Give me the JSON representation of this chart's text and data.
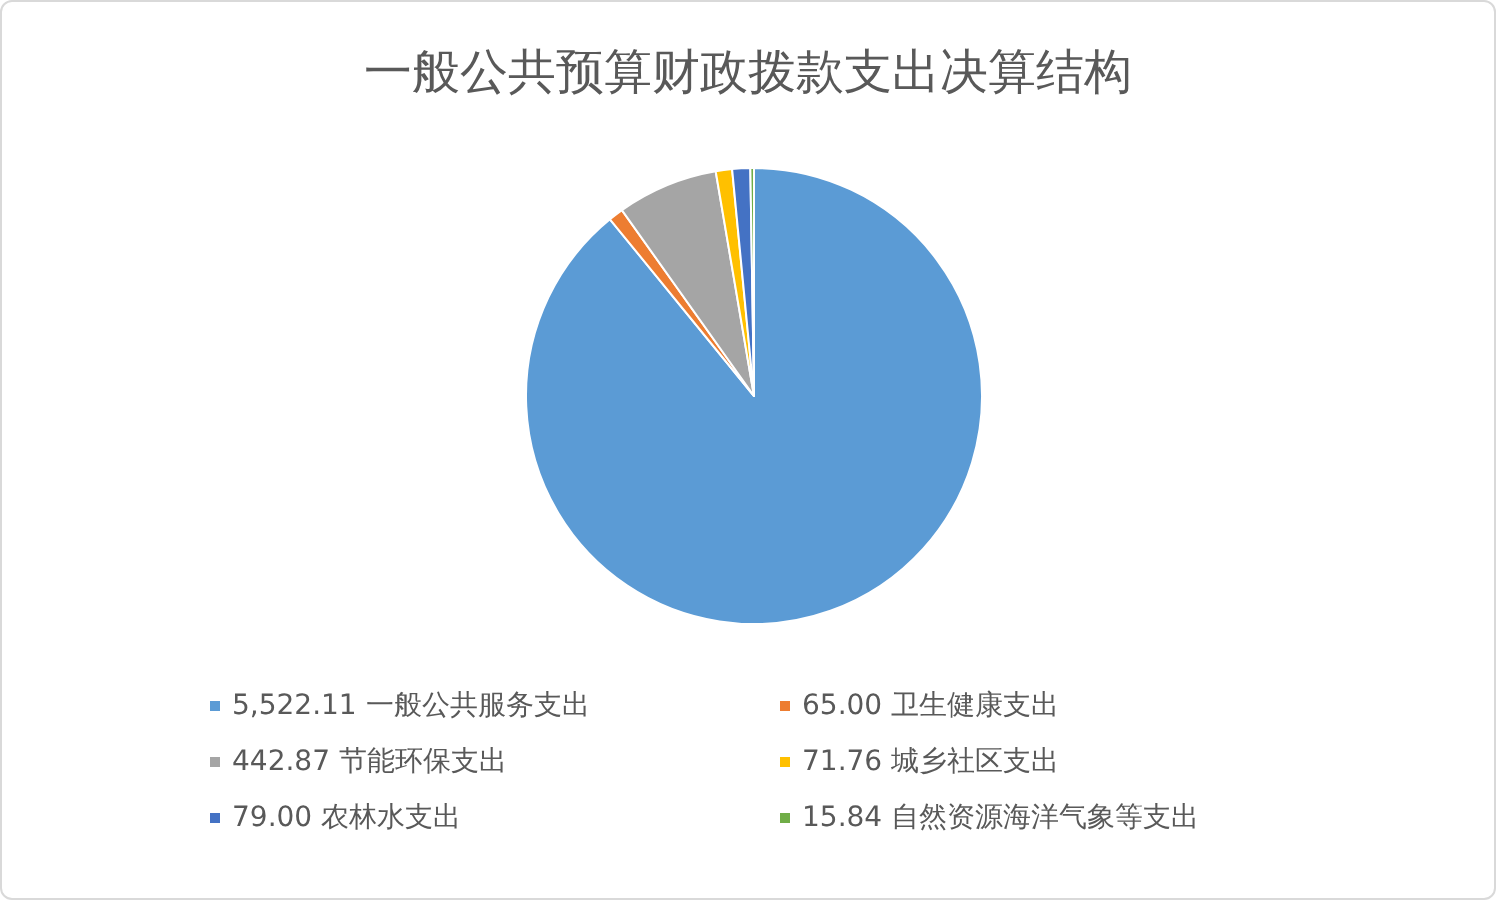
{
  "chart_data": {
    "type": "pie",
    "title": "一般公共预算财政拨款支出决算结构",
    "categories": [
      "一般公共服务支出",
      "卫生健康支出",
      "节能环保支出",
      "城乡社区支出",
      "农林水支出",
      "自然资源海洋气象等支出"
    ],
    "values": [
      5522.11,
      65.0,
      442.87,
      71.76,
      79.0,
      15.84
    ],
    "value_labels": [
      "5,522.11",
      "65.00",
      "442.87",
      "71.76",
      "79.00",
      "15.84"
    ],
    "colors": [
      "#5b9bd5",
      "#ed7d31",
      "#a5a5a5",
      "#ffc000",
      "#4472c4",
      "#70ad47"
    ],
    "legend": "bottom"
  }
}
